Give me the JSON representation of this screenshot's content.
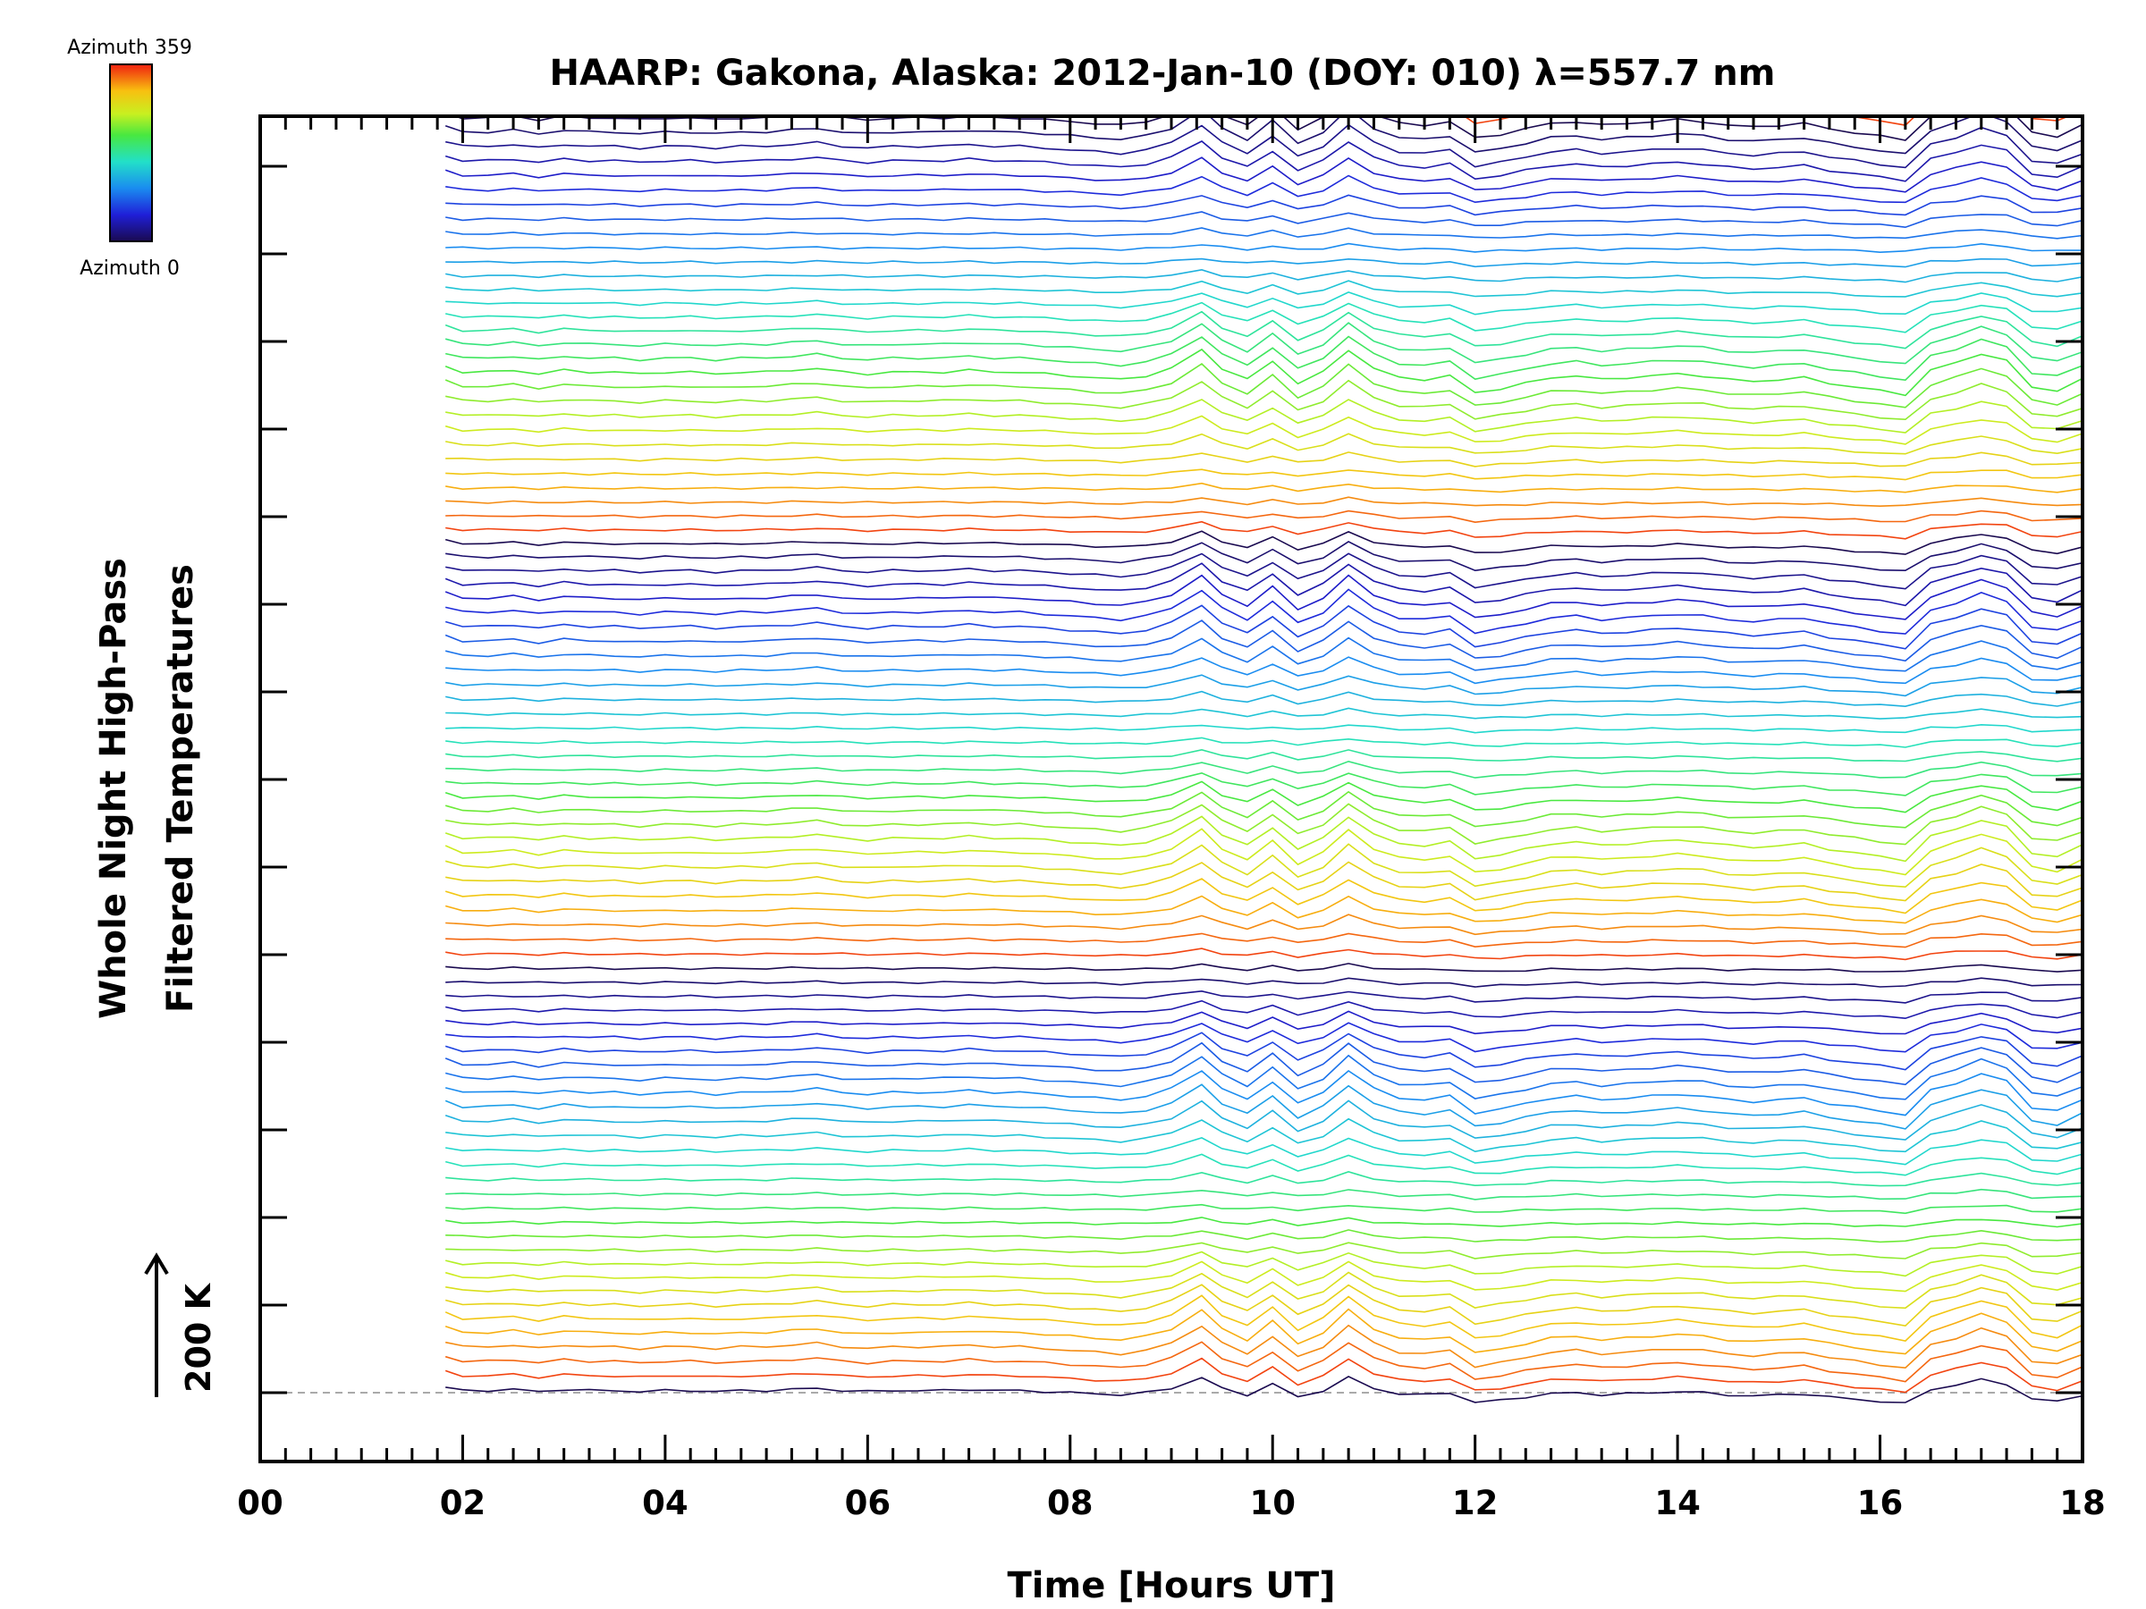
{
  "chart_data": {
    "type": "line",
    "title": "HAARP: Gakona,  Alaska: 2012-Jan-10 (DOY: 010) λ=557.7 nm",
    "xlabel": "Time [Hours UT]",
    "ylabel_lines": [
      "Whole Night High-Pass",
      "Filtered Temperatures"
    ],
    "xlim": [
      0,
      18
    ],
    "x_ticks": [
      "00",
      "02",
      "04",
      "06",
      "08",
      "10",
      "12",
      "14",
      "16",
      "18"
    ],
    "x_tick_values": [
      0,
      2,
      4,
      6,
      8,
      10,
      12,
      14,
      16,
      18
    ],
    "y_major_tick_count": 15,
    "scale_bar_label": "200 K",
    "colorbar": {
      "min_label": "Azimuth 0",
      "max_label": "Azimuth 359"
    },
    "series_count": 142,
    "series_offset_K": 20,
    "data_start_hour": 1.83,
    "data_end_hour": 18,
    "sample_times": [
      1.83,
      2.0,
      2.25,
      2.5,
      2.75,
      3.0,
      3.25,
      3.5,
      3.75,
      4.0,
      4.25,
      4.5,
      4.75,
      5.0,
      5.25,
      5.5,
      5.75,
      6.0,
      6.25,
      6.5,
      6.75,
      7.0,
      7.25,
      7.5,
      7.75,
      8.0,
      8.25,
      8.5,
      8.75,
      9.0,
      9.3,
      9.5,
      9.75,
      10.0,
      10.25,
      10.5,
      10.75,
      11.0,
      11.25,
      11.5,
      11.75,
      12.0,
      12.25,
      12.5,
      12.75,
      13.0,
      13.25,
      13.5,
      13.75,
      14.0,
      14.25,
      14.5,
      14.75,
      15.0,
      15.25,
      15.5,
      15.75,
      16.0,
      16.25,
      16.5,
      16.75,
      17.0,
      17.25,
      17.5,
      17.75,
      18.0
    ],
    "common_variation_K": [
      5,
      2,
      2,
      3,
      1,
      3,
      2,
      2,
      1,
      2,
      2,
      1,
      2,
      2,
      3,
      4,
      2,
      1,
      2,
      2,
      2,
      3,
      2,
      2,
      1,
      0,
      -1,
      -2,
      0,
      4,
      14,
      4,
      -2,
      8,
      -4,
      2,
      14,
      4,
      -1,
      -2,
      0,
      -9,
      -7,
      -4,
      -1,
      0,
      -2,
      -1,
      0,
      1,
      0,
      -2,
      -3,
      -2,
      -1,
      -4,
      -6,
      -8,
      -10,
      3,
      7,
      12,
      8,
      -6,
      -8,
      -2
    ],
    "baseline_K": 0
  }
}
